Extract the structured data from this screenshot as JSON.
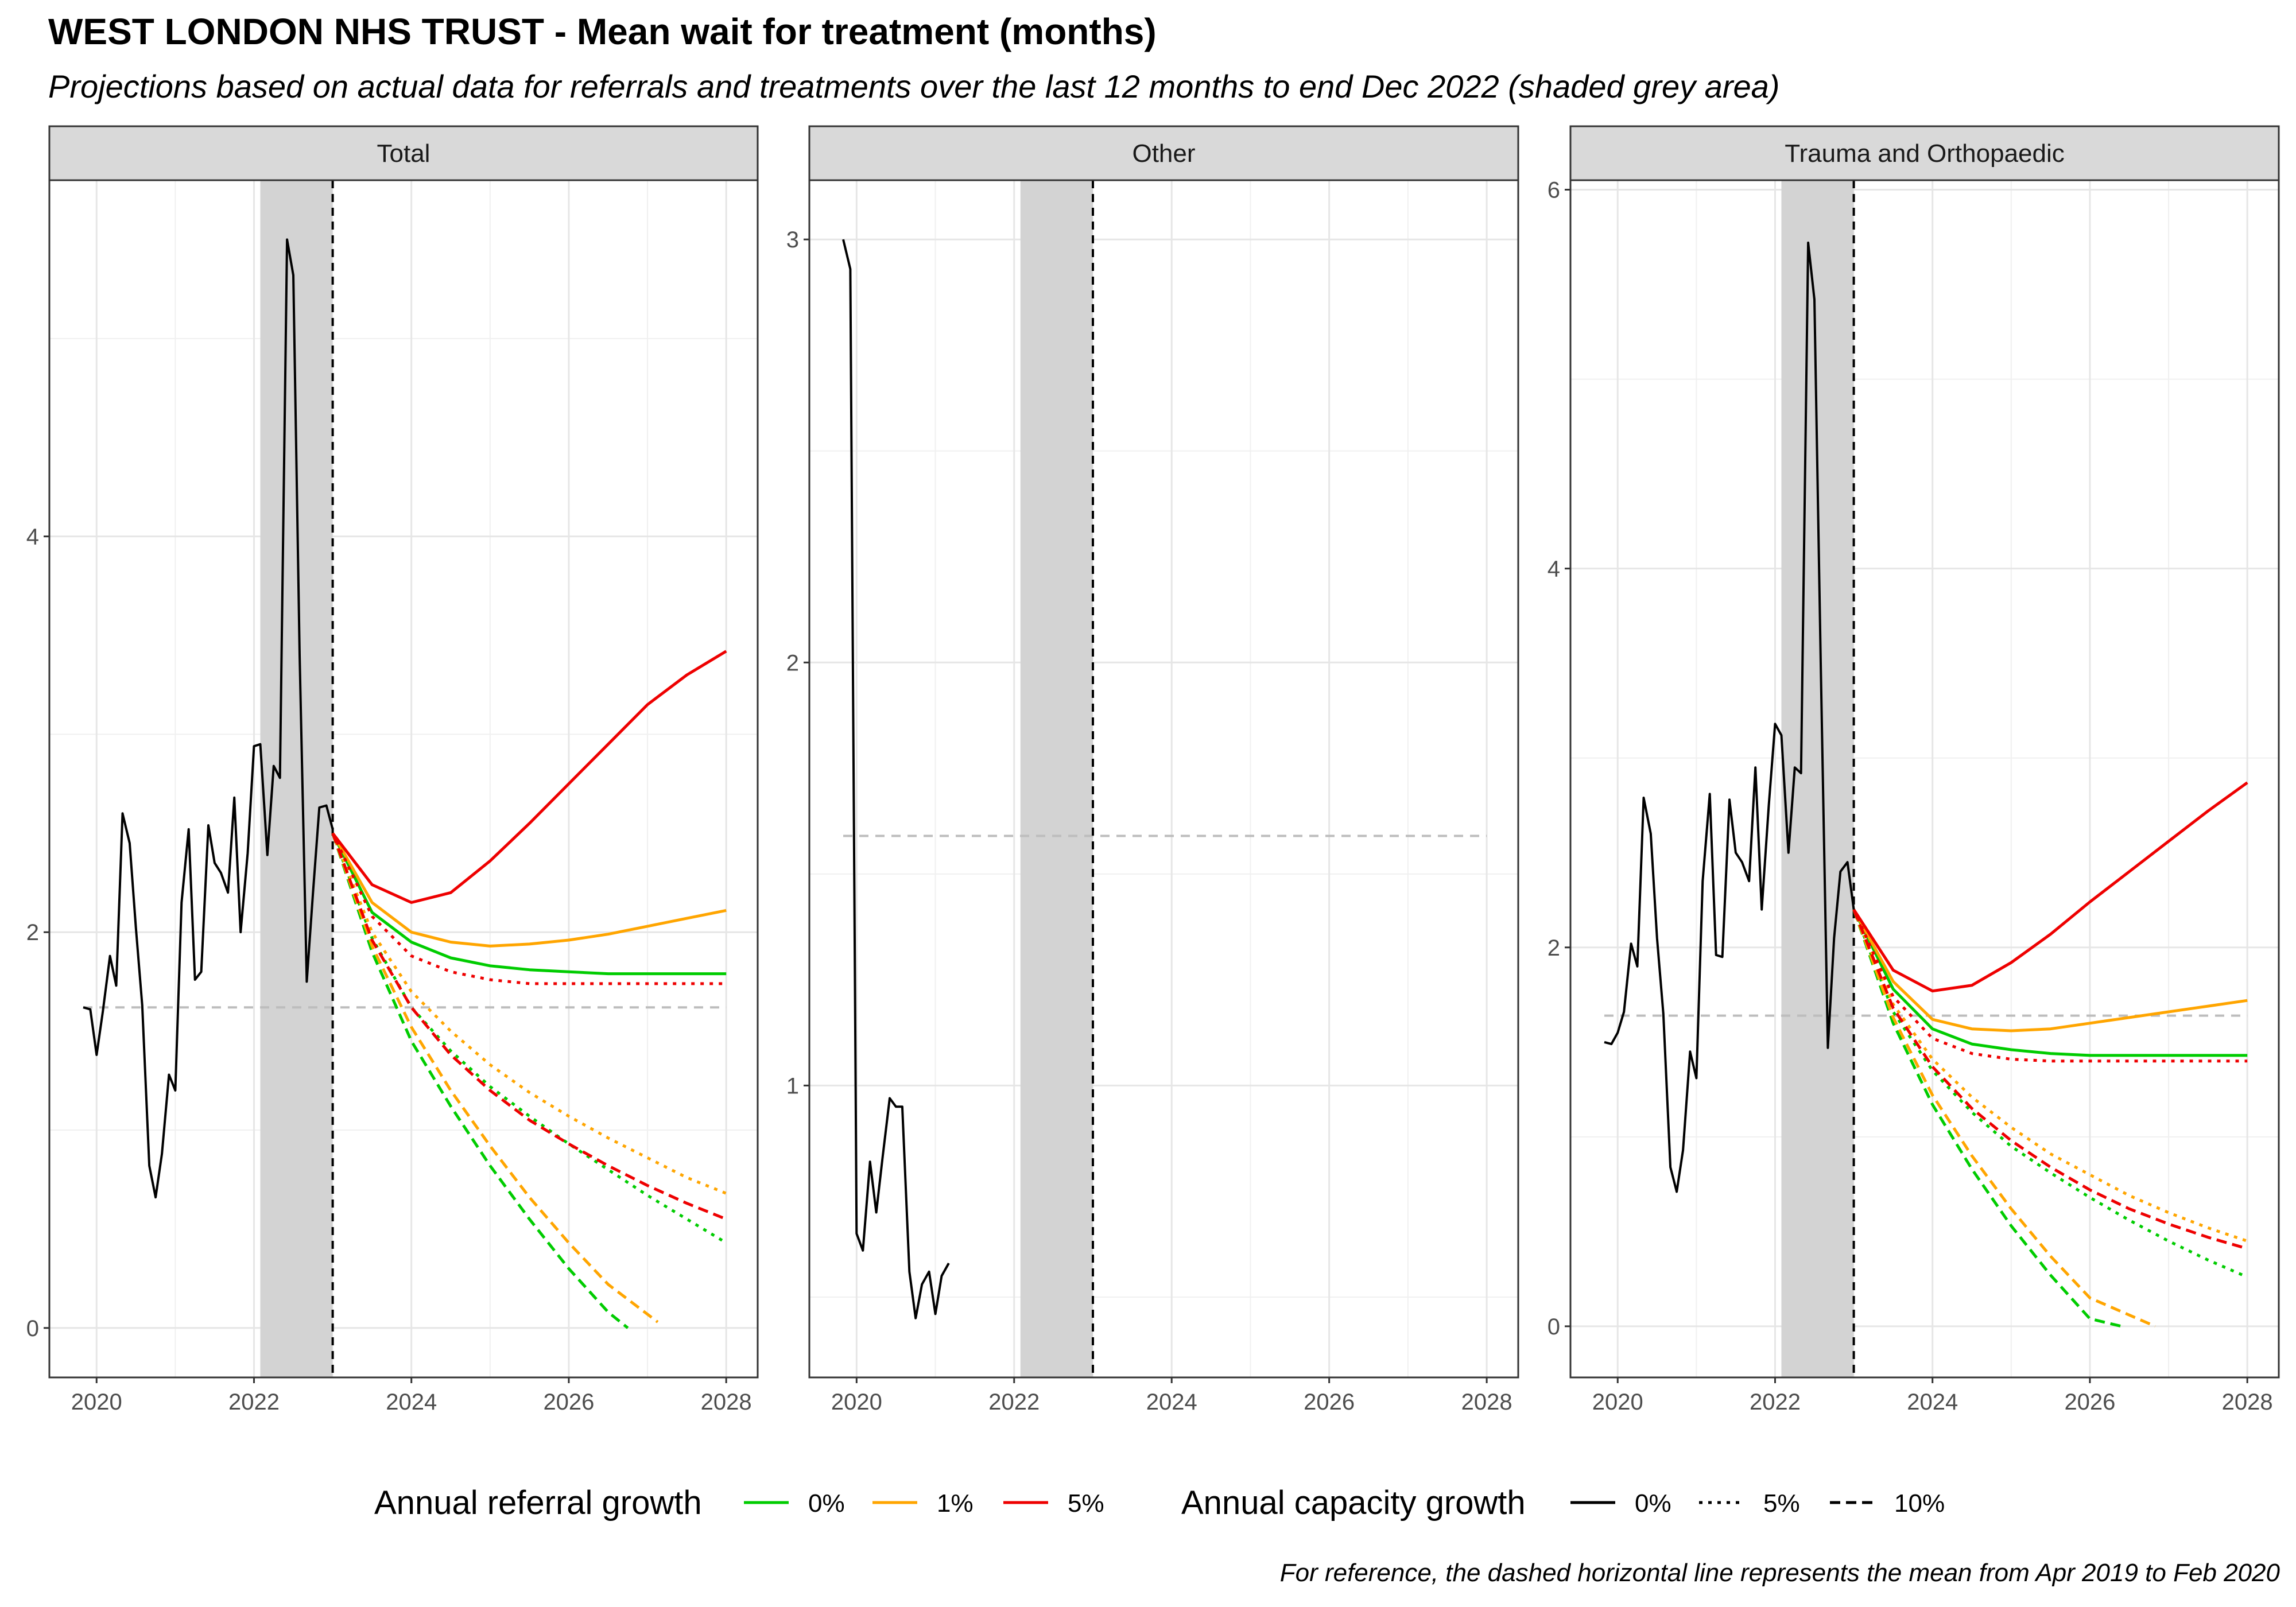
{
  "title": "WEST LONDON NHS TRUST - Mean wait for treatment (months)",
  "subtitle": "Projections based on actual data for referrals and treatments over the last 12 months to end Dec 2022 (shaded grey area)",
  "caption": "For reference, the dashed horizontal line represents the mean from Apr 2019 to Feb 2020",
  "legend": {
    "referral_title": "Annual referral growth",
    "referral_items": [
      {
        "label": "0%",
        "color": "#00CC00"
      },
      {
        "label": "1%",
        "color": "#FFA500"
      },
      {
        "label": "5%",
        "color": "#EE0000"
      }
    ],
    "capacity_title": "Annual capacity growth",
    "capacity_items": [
      {
        "label": "0%",
        "dash": "solid"
      },
      {
        "label": "5%",
        "dash": "dotted"
      },
      {
        "label": "10%",
        "dash": "dashed"
      }
    ]
  },
  "chart_data": [
    {
      "type": "line",
      "panel": "Total",
      "x_ticks": [
        "2020",
        "2022",
        "2024",
        "2026",
        "2028"
      ],
      "y_ticks": [
        "0",
        "2",
        "4"
      ],
      "xlim": [
        2019.4,
        2028.4
      ],
      "ylim": [
        -0.25,
        5.8
      ],
      "y_tick_values": [
        0,
        2,
        4
      ],
      "y_minor": [
        1,
        3,
        5
      ],
      "shaded_period": [
        2022.08,
        2023.0
      ],
      "projection_start": 2023.0,
      "reference_mean": 1.62,
      "actual": {
        "x": [
          2019.83,
          2019.92,
          2020.0,
          2020.08,
          2020.17,
          2020.25,
          2020.33,
          2020.42,
          2020.5,
          2020.58,
          2020.67,
          2020.75,
          2020.83,
          2020.92,
          2021.0,
          2021.08,
          2021.17,
          2021.25,
          2021.33,
          2021.42,
          2021.5,
          2021.58,
          2021.67,
          2021.75,
          2021.83,
          2021.92,
          2022.0,
          2022.08,
          2022.17,
          2022.25,
          2022.33,
          2022.42,
          2022.5,
          2022.58,
          2022.67,
          2022.75,
          2022.83,
          2022.92,
          2023.0
        ],
        "y": [
          1.62,
          1.61,
          1.38,
          1.6,
          1.88,
          1.73,
          2.6,
          2.45,
          2.02,
          1.63,
          0.82,
          0.66,
          0.88,
          1.28,
          1.2,
          2.15,
          2.52,
          1.76,
          1.8,
          2.54,
          2.35,
          2.3,
          2.2,
          2.68,
          2.0,
          2.4,
          2.94,
          2.95,
          2.39,
          2.84,
          2.78,
          5.5,
          5.32,
          3.4,
          1.75,
          2.2,
          2.63,
          2.64,
          2.52
        ]
      },
      "projection_x": [
        2023.0,
        2023.5,
        2024.0,
        2024.5,
        2025.0,
        2025.5,
        2026.0,
        2026.5,
        2027.0,
        2027.5,
        2028.0
      ],
      "projections": [
        {
          "referral": "0%",
          "capacity": "0%",
          "y": [
            2.5,
            2.1,
            1.95,
            1.87,
            1.83,
            1.81,
            1.8,
            1.79,
            1.79,
            1.79,
            1.79
          ]
        },
        {
          "referral": "1%",
          "capacity": "0%",
          "y": [
            2.5,
            2.15,
            2.0,
            1.95,
            1.93,
            1.94,
            1.96,
            1.99,
            2.03,
            2.07,
            2.11
          ]
        },
        {
          "referral": "5%",
          "capacity": "0%",
          "y": [
            2.5,
            2.24,
            2.15,
            2.2,
            2.36,
            2.55,
            2.75,
            2.95,
            3.15,
            3.3,
            3.42
          ]
        },
        {
          "referral": "0%",
          "capacity": "5%",
          "y": [
            2.5,
            1.97,
            1.62,
            1.4,
            1.22,
            1.07,
            0.93,
            0.8,
            0.67,
            0.55,
            0.43
          ]
        },
        {
          "referral": "1%",
          "capacity": "5%",
          "y": [
            2.5,
            2.0,
            1.7,
            1.5,
            1.33,
            1.19,
            1.07,
            0.96,
            0.86,
            0.76,
            0.68
          ]
        },
        {
          "referral": "5%",
          "capacity": "5%",
          "y": [
            2.5,
            2.08,
            1.88,
            1.8,
            1.76,
            1.74,
            1.74,
            1.74,
            1.74,
            1.74,
            1.74
          ]
        },
        {
          "referral": "0%",
          "capacity": "10%",
          "y": [
            2.5,
            1.9,
            1.45,
            1.12,
            0.82,
            0.55,
            0.3,
            0.08,
            0.0
          ]
        },
        {
          "referral": "1%",
          "capacity": "10%",
          "y": [
            2.5,
            1.93,
            1.52,
            1.2,
            0.92,
            0.66,
            0.43,
            0.22,
            0.03
          ]
        },
        {
          "referral": "5%",
          "capacity": "10%",
          "y": [
            2.5,
            1.96,
            1.62,
            1.38,
            1.2,
            1.05,
            0.93,
            0.82,
            0.72,
            0.63,
            0.55
          ]
        }
      ],
      "projections_x_10pct": {
        "0%": [
          2023.0,
          2023.5,
          2024.0,
          2024.5,
          2025.0,
          2025.5,
          2026.0,
          2026.5,
          2026.75
        ],
        "1%": [
          2023.0,
          2023.5,
          2024.0,
          2024.5,
          2025.0,
          2025.5,
          2026.0,
          2026.5,
          2027.13
        ]
      }
    },
    {
      "type": "line",
      "panel": "Other",
      "x_ticks": [
        "2020",
        "2022",
        "2024",
        "2026",
        "2028"
      ],
      "y_ticks": [
        "1",
        "2",
        "3"
      ],
      "xlim": [
        2019.4,
        2028.4
      ],
      "ylim": [
        0.31,
        3.14
      ],
      "y_tick_values": [
        1,
        2,
        3
      ],
      "y_minor": [
        0.5,
        1.5,
        2.5
      ],
      "shaded_period": [
        2022.08,
        2023.0
      ],
      "projection_start": 2023.0,
      "reference_mean": 1.59,
      "actual": {
        "x": [
          2019.83,
          2019.92,
          2020.0,
          2020.08,
          2020.17,
          2020.25,
          2020.33,
          2020.42,
          2020.5,
          2020.58,
          2020.67,
          2020.75,
          2020.83,
          2020.92,
          2021.0,
          2021.08,
          2021.17
        ],
        "y": [
          3.0,
          2.93,
          0.65,
          0.61,
          0.82,
          0.7,
          0.83,
          0.97,
          0.95,
          0.95,
          0.56,
          0.45,
          0.53,
          0.56,
          0.46,
          0.55,
          0.58
        ]
      },
      "projections": []
    },
    {
      "type": "line",
      "panel": "Trauma and Orthopaedic",
      "x_ticks": [
        "2020",
        "2022",
        "2024",
        "2026",
        "2028"
      ],
      "y_ticks": [
        "0",
        "2",
        "4",
        "6"
      ],
      "xlim": [
        2019.4,
        2028.4
      ],
      "ylim": [
        -0.27,
        6.05
      ],
      "y_tick_values": [
        0,
        2,
        4,
        6
      ],
      "y_minor": [
        1,
        3,
        5
      ],
      "shaded_period": [
        2022.08,
        2023.0
      ],
      "projection_start": 2023.0,
      "reference_mean": 1.64,
      "actual": {
        "x": [
          2019.83,
          2019.92,
          2020.0,
          2020.08,
          2020.17,
          2020.25,
          2020.33,
          2020.42,
          2020.5,
          2020.58,
          2020.67,
          2020.75,
          2020.83,
          2020.92,
          2021.0,
          2021.08,
          2021.17,
          2021.25,
          2021.33,
          2021.42,
          2021.5,
          2021.58,
          2021.67,
          2021.75,
          2021.83,
          2021.92,
          2022.0,
          2022.08,
          2022.17,
          2022.25,
          2022.33,
          2022.42,
          2022.5,
          2022.58,
          2022.67,
          2022.75,
          2022.83,
          2022.92,
          2023.0
        ],
        "y": [
          1.5,
          1.49,
          1.55,
          1.66,
          2.02,
          1.9,
          2.79,
          2.6,
          2.05,
          1.65,
          0.84,
          0.71,
          0.93,
          1.45,
          1.31,
          2.35,
          2.81,
          1.96,
          1.95,
          2.78,
          2.5,
          2.45,
          2.35,
          2.95,
          2.2,
          2.75,
          3.18,
          3.12,
          2.5,
          2.95,
          2.92,
          5.72,
          5.42,
          3.5,
          1.47,
          2.05,
          2.4,
          2.45,
          2.2
        ]
      },
      "projection_x": [
        2023.0,
        2023.5,
        2024.0,
        2024.5,
        2025.0,
        2025.5,
        2026.0,
        2026.5,
        2027.0,
        2027.5,
        2028.0
      ],
      "projections": [
        {
          "referral": "0%",
          "capacity": "0%",
          "y": [
            2.2,
            1.78,
            1.57,
            1.49,
            1.46,
            1.44,
            1.43,
            1.43,
            1.43,
            1.43,
            1.43
          ]
        },
        {
          "referral": "1%",
          "capacity": "0%",
          "y": [
            2.2,
            1.82,
            1.62,
            1.57,
            1.56,
            1.57,
            1.6,
            1.63,
            1.66,
            1.69,
            1.72
          ]
        },
        {
          "referral": "5%",
          "capacity": "0%",
          "y": [
            2.2,
            1.88,
            1.77,
            1.8,
            1.92,
            2.07,
            2.24,
            2.4,
            2.56,
            2.72,
            2.87
          ]
        },
        {
          "referral": "0%",
          "capacity": "5%",
          "y": [
            2.2,
            1.66,
            1.35,
            1.13,
            0.95,
            0.81,
            0.68,
            0.56,
            0.45,
            0.35,
            0.26
          ]
        },
        {
          "referral": "1%",
          "capacity": "5%",
          "y": [
            2.2,
            1.7,
            1.41,
            1.21,
            1.05,
            0.91,
            0.8,
            0.69,
            0.6,
            0.52,
            0.45
          ]
        },
        {
          "referral": "5%",
          "capacity": "5%",
          "y": [
            2.2,
            1.74,
            1.52,
            1.44,
            1.41,
            1.4,
            1.4,
            1.4,
            1.4,
            1.4,
            1.4
          ]
        },
        {
          "referral": "0%",
          "capacity": "10%",
          "y": [
            2.2,
            1.6,
            1.17,
            0.83,
            0.53,
            0.27,
            0.04,
            0.0
          ]
        },
        {
          "referral": "1%",
          "capacity": "10%",
          "y": [
            2.2,
            1.63,
            1.22,
            0.9,
            0.62,
            0.37,
            0.15,
            0.0
          ]
        },
        {
          "referral": "5%",
          "capacity": "10%",
          "y": [
            2.2,
            1.68,
            1.37,
            1.15,
            0.98,
            0.84,
            0.72,
            0.62,
            0.54,
            0.47,
            0.41
          ]
        }
      ],
      "projections_x_10pct": {
        "0%": [
          2023.0,
          2023.5,
          2024.0,
          2024.5,
          2025.0,
          2025.5,
          2026.0,
          2026.4
        ],
        "1%": [
          2023.0,
          2023.5,
          2024.0,
          2024.5,
          2025.0,
          2025.5,
          2026.0,
          2026.83
        ]
      }
    }
  ]
}
